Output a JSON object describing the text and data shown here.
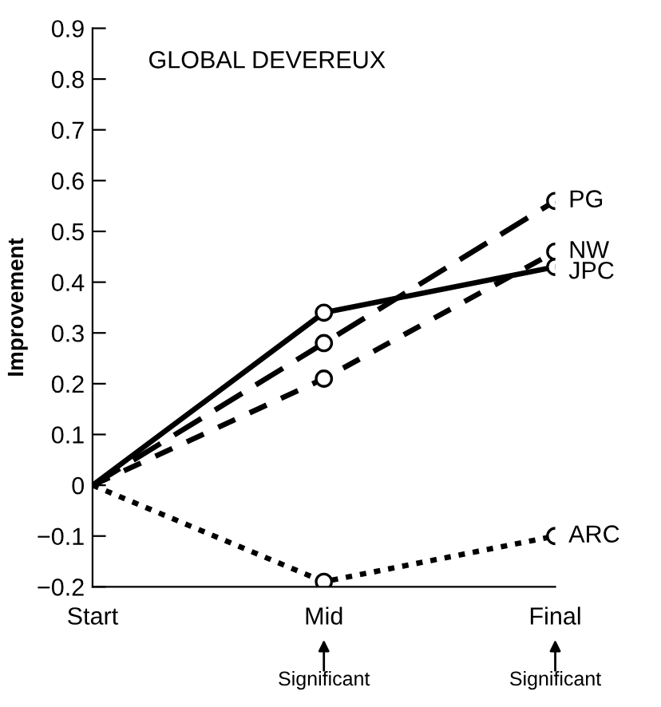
{
  "chart_data": {
    "type": "line",
    "title": "GLOBAL DEVEREUX",
    "ylabel": "Improvement",
    "categories": [
      "Start",
      "Mid",
      "Final"
    ],
    "series": [
      {
        "name": "PG",
        "color": "#000000",
        "line_style": "dashed",
        "values": [
          0,
          0.28,
          0.56
        ]
      },
      {
        "name": "NW",
        "color": "#000000",
        "line_style": "dashed",
        "values": [
          0,
          0.21,
          0.46
        ]
      },
      {
        "name": "JPC",
        "color": "#000000",
        "line_style": "solid",
        "values": [
          0,
          0.34,
          0.43
        ]
      },
      {
        "name": "ARC",
        "color": "#000000",
        "line_style": "dotted",
        "values": [
          0,
          -0.19,
          -0.1
        ]
      }
    ],
    "marker": "circle",
    "ylim": [
      -0.2,
      0.9
    ],
    "yticks": [
      {
        "value": -0.2,
        "label": "−0.2"
      },
      {
        "value": -0.1,
        "label": "−0.1"
      },
      0,
      0.1,
      0.2,
      0.3,
      0.4,
      0.5,
      0.6,
      0.7,
      0.8,
      0.9
    ],
    "annotations": [
      "Significant",
      "Significant"
    ],
    "grid": false,
    "legend": false
  }
}
